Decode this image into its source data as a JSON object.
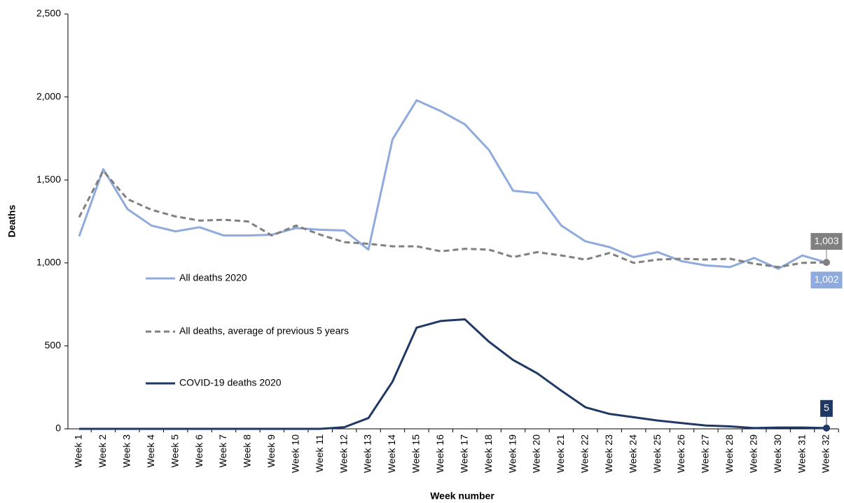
{
  "chart_data": {
    "type": "line",
    "x_label": "Week number",
    "y_label": "Deaths",
    "categories": [
      "Week 1",
      "Week 2",
      "Week 3",
      "Week 4",
      "Week 5",
      "Week 6",
      "Week 7",
      "Week 8",
      "Week 9",
      "Week 10",
      "Week 11",
      "Week 12",
      "Week 13",
      "Week 14",
      "Week 15",
      "Week 16",
      "Week 17",
      "Week 18",
      "Week 19",
      "Week 20",
      "Week 21",
      "Week 22",
      "Week 23",
      "Week 24",
      "Week 25",
      "Week 26",
      "Week 27",
      "Week 28",
      "Week 29",
      "Week 30",
      "Week 31",
      "Week 32"
    ],
    "series": [
      {
        "name": "All deaths 2020",
        "color": "#8faadc",
        "dash": false,
        "values": [
          1160,
          1565,
          1325,
          1225,
          1190,
          1215,
          1165,
          1165,
          1170,
          1210,
          1200,
          1195,
          1080,
          1745,
          1980,
          1915,
          1835,
          1680,
          1435,
          1420,
          1225,
          1130,
          1095,
          1035,
          1065,
          1010,
          985,
          975,
          1030,
          965,
          1045,
          1002
        ],
        "value_labels": [
          null,
          null,
          null,
          null,
          null,
          null,
          null,
          null,
          null,
          null,
          null,
          null,
          null,
          null,
          null,
          null,
          null,
          null,
          null,
          null,
          null,
          null,
          null,
          null,
          null,
          null,
          null,
          null,
          null,
          null,
          null,
          "1,002"
        ]
      },
      {
        "name": "All deaths, average of previous 5 years",
        "color": "#808080",
        "dash": true,
        "values": [
          1275,
          1555,
          1385,
          1320,
          1280,
          1255,
          1260,
          1250,
          1165,
          1225,
          1170,
          1125,
          1115,
          1100,
          1100,
          1070,
          1085,
          1080,
          1035,
          1065,
          1045,
          1020,
          1060,
          1000,
          1020,
          1025,
          1020,
          1025,
          995,
          975,
          1000,
          1003
        ],
        "value_labels": [
          null,
          null,
          null,
          null,
          null,
          null,
          null,
          null,
          null,
          null,
          null,
          null,
          null,
          null,
          null,
          null,
          null,
          null,
          null,
          null,
          null,
          null,
          null,
          null,
          null,
          null,
          null,
          null,
          null,
          null,
          null,
          "1,003"
        ]
      },
      {
        "name": "COVID-19 deaths 2020",
        "color": "#1f3864",
        "dash": false,
        "values": [
          0,
          0,
          0,
          0,
          0,
          0,
          0,
          0,
          0,
          0,
          0,
          10,
          65,
          285,
          610,
          650,
          660,
          525,
          415,
          335,
          230,
          130,
          90,
          70,
          50,
          35,
          20,
          15,
          5,
          8,
          8,
          5
        ]
      }
    ],
    "ylim": [
      0,
      2500
    ],
    "yticks": [
      0,
      500,
      {
        "value": 1000,
        "label": "1,000"
      },
      {
        "value": 1500,
        "label": "1,500"
      },
      {
        "value": 2000,
        "label": "2,000"
      },
      {
        "value": 2500,
        "label": "2,500"
      }
    ]
  }
}
